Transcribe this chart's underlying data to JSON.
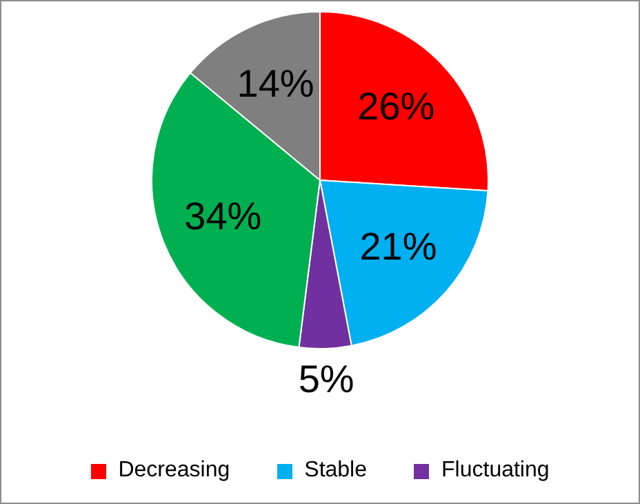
{
  "chart_data": {
    "type": "pie",
    "categories": [
      "Decreasing",
      "Stable",
      "Fluctuating",
      null,
      null
    ],
    "values": [
      26,
      21,
      5,
      34,
      14
    ],
    "value_labels": [
      "26%",
      "21%",
      "5%",
      "34%",
      "14%"
    ],
    "colors": [
      "#ff0000",
      "#00b0f0",
      "#7030a0",
      "#00b050",
      "#7f7f7f"
    ],
    "legend": "bottom"
  }
}
